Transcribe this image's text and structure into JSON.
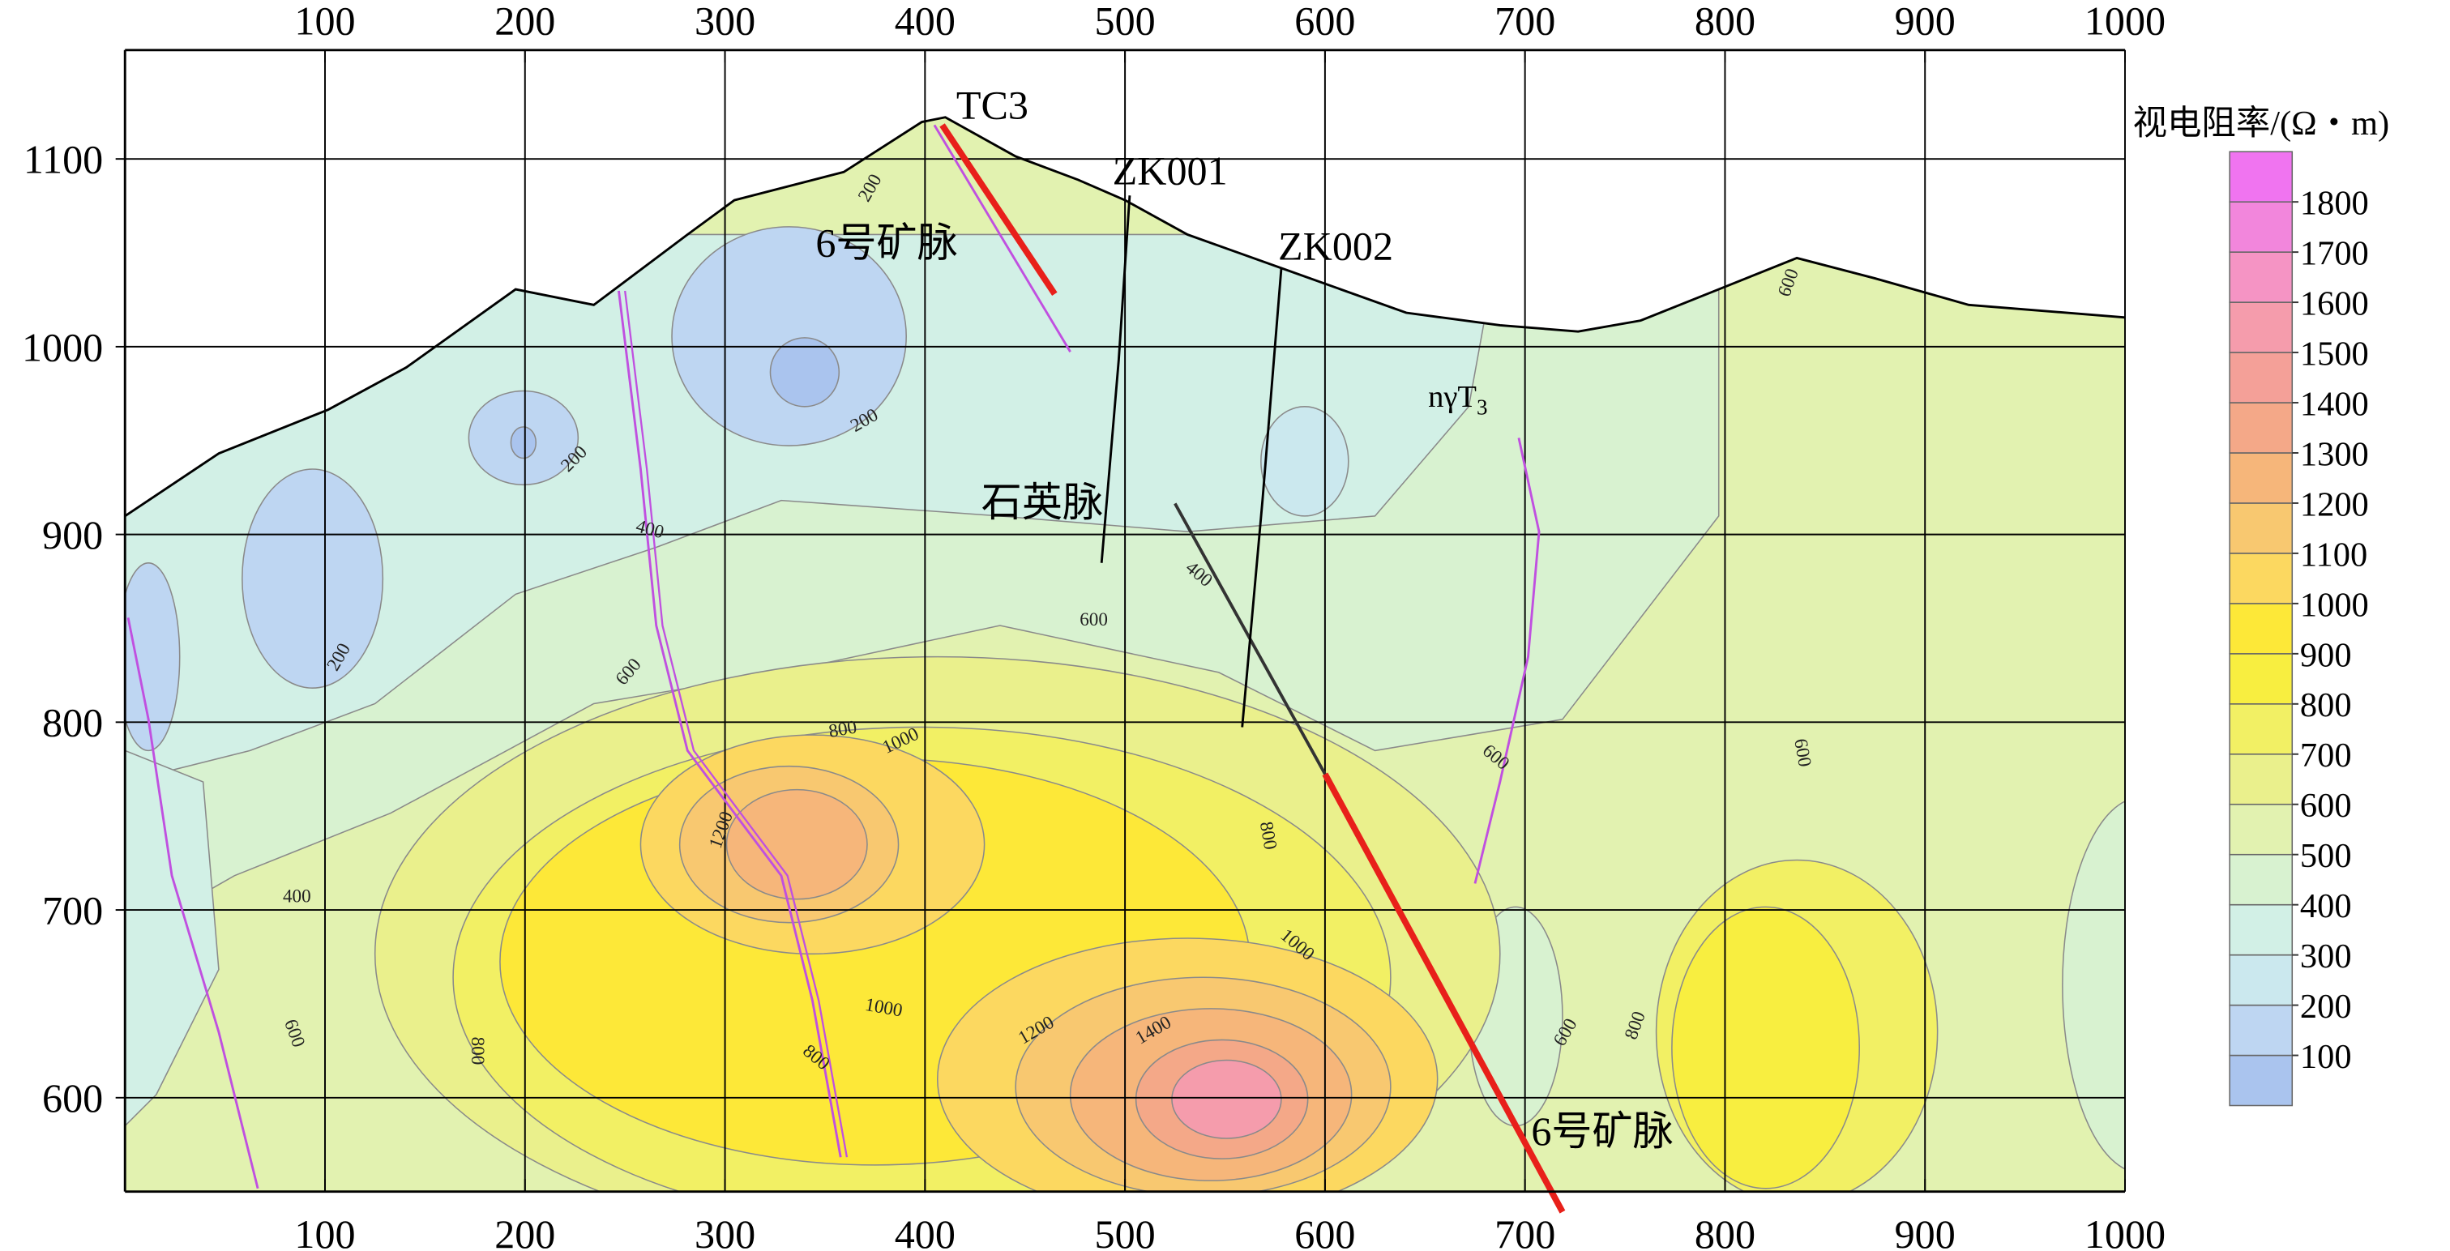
{
  "chart_data": {
    "type": "contour",
    "xlim": [
      0,
      1000
    ],
    "ylim": [
      550,
      1158
    ],
    "xticks": [
      100,
      200,
      300,
      400,
      500,
      600,
      700,
      800,
      900,
      1000
    ],
    "yticks": [
      600,
      700,
      800,
      900,
      1000,
      1100
    ],
    "grid": true,
    "colorbar": {
      "title": "视电阻率/(Ω・m)",
      "levels": [
        100,
        200,
        300,
        400,
        500,
        600,
        700,
        800,
        900,
        1000,
        1100,
        1200,
        1300,
        1400,
        1500,
        1600,
        1700,
        1800
      ],
      "colors": [
        "#aac4ee",
        "#bed6f2",
        "#cbe8ee",
        "#d2f0e6",
        "#d8f2d0",
        "#e2f2b0",
        "#eaf08c",
        "#f2f064",
        "#f8ee40",
        "#fde838",
        "#fcd860",
        "#f8c870",
        "#f6b67a",
        "#f4a888",
        "#f4a098",
        "#f59cac",
        "#f594c4",
        "#f286dc",
        "#f074f0"
      ]
    },
    "annotations": [
      "TC3",
      "ZK001",
      "ZK002",
      "6号矿脉",
      "石英脉",
      "6号矿脉"
    ],
    "rock_label": {
      "text": "nγT",
      "subscript": "3"
    },
    "contour_labels": [
      200,
      200,
      200,
      200,
      400,
      400,
      400,
      600,
      600,
      600,
      600,
      600,
      600,
      600,
      800,
      800,
      800,
      800,
      800,
      1000,
      1000,
      1000,
      1200,
      1200,
      1400
    ]
  }
}
